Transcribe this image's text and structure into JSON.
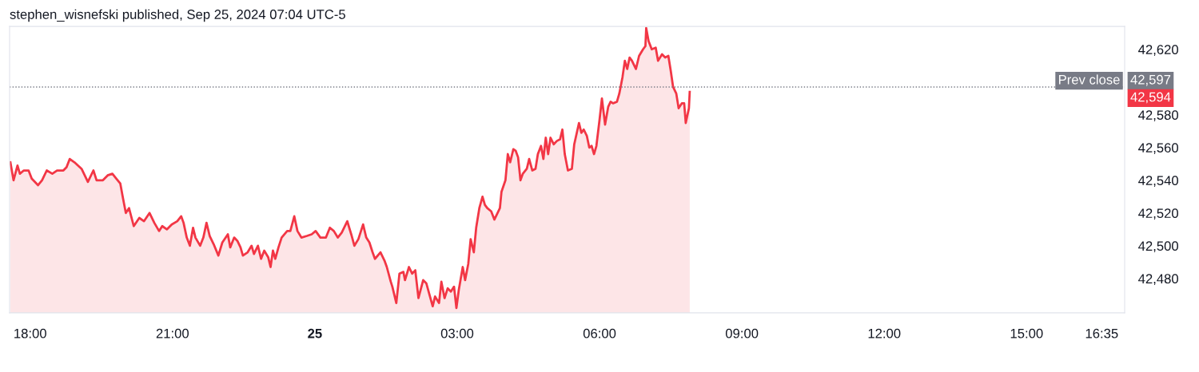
{
  "chart_data": {
    "type": "area",
    "title": "stephen_wisnefski published, Sep 25, 2024 07:04 UTC-5",
    "series": [
      {
        "color": "#f23645",
        "x": [
          "2024-09-24T17:35",
          "2024-09-24T17:39",
          "2024-09-24T17:44",
          "2024-09-24T17:47",
          "2024-09-24T17:52",
          "2024-09-24T17:58",
          "2024-09-24T18:02",
          "2024-09-24T18:10",
          "2024-09-24T18:15",
          "2024-09-24T18:21",
          "2024-09-24T18:28",
          "2024-09-24T18:34",
          "2024-09-24T18:42",
          "2024-09-24T18:46",
          "2024-09-24T18:50",
          "2024-09-24T18:56",
          "2024-09-24T19:05",
          "2024-09-24T19:13",
          "2024-09-24T19:20",
          "2024-09-24T19:24",
          "2024-09-24T19:32",
          "2024-09-24T19:38",
          "2024-09-24T19:44",
          "2024-09-24T19:49",
          "2024-09-24T19:54",
          "2024-09-24T19:57",
          "2024-09-24T20:01",
          "2024-09-24T20:05",
          "2024-09-24T20:11",
          "2024-09-24T20:18",
          "2024-09-24T20:24",
          "2024-09-24T20:31",
          "2024-09-24T20:37",
          "2024-09-24T20:43",
          "2024-09-24T20:47",
          "2024-09-24T20:53",
          "2024-09-24T20:59",
          "2024-09-24T21:06",
          "2024-09-24T21:11",
          "2024-09-24T21:14",
          "2024-09-24T21:18",
          "2024-09-24T21:22",
          "2024-09-24T21:26",
          "2024-09-24T21:29",
          "2024-09-24T21:35",
          "2024-09-24T21:39",
          "2024-09-24T21:43",
          "2024-09-24T21:47",
          "2024-09-24T21:52",
          "2024-09-24T21:58",
          "2024-09-24T22:03",
          "2024-09-24T22:10",
          "2024-09-24T22:13",
          "2024-09-24T22:18",
          "2024-09-24T22:22",
          "2024-09-24T22:26",
          "2024-09-24T22:29",
          "2024-09-24T22:35",
          "2024-09-24T22:40",
          "2024-09-24T22:43",
          "2024-09-24T22:48",
          "2024-09-24T22:52",
          "2024-09-24T22:56",
          "2024-09-24T23:01",
          "2024-09-24T23:04",
          "2024-09-24T23:07",
          "2024-09-24T23:10",
          "2024-09-24T23:14",
          "2024-09-24T23:18",
          "2024-09-24T23:25",
          "2024-09-24T23:29",
          "2024-09-24T23:34",
          "2024-09-24T23:38",
          "2024-09-24T23:43",
          "2024-09-24T23:50",
          "2024-09-24T23:56",
          "2024-09-25T00:01",
          "2024-09-25T00:07",
          "2024-09-25T00:14",
          "2024-09-25T00:19",
          "2024-09-25T00:24",
          "2024-09-25T00:29",
          "2024-09-25T00:34",
          "2024-09-25T00:41",
          "2024-09-25T00:46",
          "2024-09-25T00:50",
          "2024-09-25T00:55",
          "2024-09-25T01:01",
          "2024-09-25T01:05",
          "2024-09-25T01:09",
          "2024-09-25T01:13",
          "2024-09-25T01:16",
          "2024-09-25T01:23",
          "2024-09-25T01:28",
          "2024-09-25T01:31",
          "2024-09-25T01:36",
          "2024-09-25T01:38",
          "2024-09-25T01:43",
          "2024-09-25T01:47",
          "2024-09-25T01:52",
          "2024-09-25T01:54",
          "2024-09-25T01:59",
          "2024-09-25T02:03",
          "2024-09-25T02:07",
          "2024-09-25T02:11",
          "2024-09-25T02:17",
          "2024-09-25T02:21",
          "2024-09-25T02:25",
          "2024-09-25T02:29",
          "2024-09-25T02:32",
          "2024-09-25T02:37",
          "2024-09-25T02:40",
          "2024-09-25T02:44",
          "2024-09-25T02:48",
          "2024-09-25T02:52",
          "2024-09-25T02:56",
          "2024-09-25T02:59",
          "2024-09-25T03:02",
          "2024-09-25T03:07",
          "2024-09-25T03:10",
          "2024-09-25T03:14",
          "2024-09-25T03:17",
          "2024-09-25T03:21",
          "2024-09-25T03:24",
          "2024-09-25T03:28",
          "2024-09-25T03:32",
          "2024-09-25T03:35",
          "2024-09-25T03:38",
          "2024-09-25T03:43",
          "2024-09-25T03:47",
          "2024-09-25T03:51",
          "2024-09-25T03:54",
          "2024-09-25T03:56",
          "2024-09-25T04:01",
          "2024-09-25T04:04",
          "2024-09-25T04:07",
          "2024-09-25T04:11",
          "2024-09-25T04:14",
          "2024-09-25T04:17",
          "2024-09-25T04:20",
          "2024-09-25T04:23",
          "2024-09-25T04:28",
          "2024-09-25T04:31",
          "2024-09-25T04:35",
          "2024-09-25T04:39",
          "2024-09-25T04:42",
          "2024-09-25T04:46",
          "2024-09-25T04:49",
          "2024-09-25T04:52",
          "2024-09-25T04:55",
          "2024-09-25T04:58",
          "2024-09-25T05:02",
          "2024-09-25T05:06",
          "2024-09-25T05:10",
          "2024-09-25T05:13",
          "2024-09-25T05:16",
          "2024-09-25T05:20",
          "2024-09-25T05:25",
          "2024-09-25T05:28",
          "2024-09-25T05:34",
          "2024-09-25T05:37",
          "2024-09-25T05:40",
          "2024-09-25T05:44",
          "2024-09-25T05:47",
          "2024-09-25T05:50",
          "2024-09-25T05:53",
          "2024-09-25T05:56",
          "2024-09-25T06:00",
          "2024-09-25T06:03",
          "2024-09-25T06:07",
          "2024-09-25T06:11",
          "2024-09-25T06:14",
          "2024-09-25T06:17",
          "2024-09-25T06:22",
          "2024-09-25T06:25",
          "2024-09-25T06:29",
          "2024-09-25T06:32",
          "2024-09-25T06:35",
          "2024-09-25T06:38",
          "2024-09-25T06:41",
          "2024-09-25T06:46",
          "2024-09-25T06:50",
          "2024-09-25T06:55",
          "2024-09-25T06:58",
          "2024-09-25T06:59",
          "2024-09-25T07:02",
          "2024-09-25T07:06",
          "2024-09-25T07:11",
          "2024-09-25T07:14",
          "2024-09-25T07:19",
          "2024-09-25T07:23",
          "2024-09-25T07:27",
          "2024-09-25T07:30",
          "2024-09-25T07:33",
          "2024-09-25T07:37",
          "2024-09-25T07:40",
          "2024-09-25T07:44",
          "2024-09-25T07:47",
          "2024-09-25T07:49",
          "2024-09-25T07:53",
          "2024-09-25T07:54"
        ],
        "values": [
          42551,
          42540,
          42549,
          42544,
          42546,
          42546,
          42541,
          42537,
          42540,
          42546,
          42544,
          42546,
          42546,
          42548,
          42553,
          42551,
          42547,
          42539,
          42546,
          42540,
          42540,
          42543,
          42544,
          42541,
          42538,
          42530,
          42520,
          42523,
          42512,
          42517,
          42515,
          42520,
          42514,
          42509,
          42512,
          42510,
          42513,
          42515,
          42518,
          42514,
          42505,
          42500,
          42511,
          42505,
          42500,
          42505,
          42514,
          42506,
          42501,
          42494,
          42502,
          42507,
          42499,
          42505,
          42503,
          42499,
          42494,
          42496,
          42500,
          42495,
          42500,
          42492,
          42497,
          42493,
          42487,
          42497,
          42492,
          42499,
          42505,
          42509,
          42509,
          42518,
          42509,
          42505,
          42506,
          42507,
          42509,
          42505,
          42505,
          42511,
          42509,
          42505,
          42508,
          42515,
          42507,
          42500,
          42504,
          42513,
          42505,
          42502,
          42496,
          42492,
          42496,
          42491,
          42487,
          42478,
          42475,
          42465,
          42483,
          42484,
          42479,
          42487,
          42483,
          42485,
          42468,
          42479,
          42477,
          42470,
          42463,
          42469,
          42465,
          42478,
          42468,
          42474,
          42472,
          42475,
          42462,
          42473,
          42487,
          42479,
          42489,
          42504,
          42496,
          42511,
          42523,
          42530,
          42525,
          42523,
          42521,
          42516,
          42520,
          42523,
          42533,
          42540,
          42556,
          42551,
          42559,
          42558,
          42554,
          42540,
          42544,
          42547,
          42553,
          42546,
          42547,
          42556,
          42561,
          42553,
          42566,
          42556,
          42566,
          42562,
          42564,
          42565,
          42571,
          42556,
          42546,
          42547,
          42562,
          42575,
          42569,
          42571,
          42567,
          42560,
          42561,
          42556,
          42561,
          42577,
          42590,
          42574,
          42585,
          42588,
          42587,
          42588,
          42593,
          42603,
          42613,
          42608,
          42615,
          42613,
          42608,
          42616,
          42620,
          42622,
          42633,
          42625,
          42620,
          42621,
          42613,
          42617,
          42615,
          42616,
          42607,
          42597,
          42593,
          42584,
          42587,
          42587,
          42575,
          42584,
          42594
        ]
      }
    ],
    "xlim": [
      "2024-09-24T17:34",
      "2024-09-25T17:04"
    ],
    "xticks": [
      {
        "value": "2024-09-24T18:00",
        "label": "18:00"
      },
      {
        "value": "2024-09-24T21:00",
        "label": "21:00"
      },
      {
        "value": "2024-09-25T00:00",
        "label": "25"
      },
      {
        "value": "2024-09-25T03:00",
        "label": "03:00"
      },
      {
        "value": "2024-09-25T06:00",
        "label": "06:00"
      },
      {
        "value": "2024-09-25T09:00",
        "label": "09:00"
      },
      {
        "value": "2024-09-25T12:00",
        "label": "12:00"
      },
      {
        "value": "2024-09-25T15:00",
        "label": "15:00"
      },
      {
        "value": "2024-09-25T16:35",
        "label": "16:35"
      }
    ],
    "ylim": [
      42459,
      42634
    ],
    "yticks": [
      {
        "value": 42480,
        "label": "42,480"
      },
      {
        "value": 42500,
        "label": "42,500"
      },
      {
        "value": 42520,
        "label": "42,520"
      },
      {
        "value": 42540,
        "label": "42,540"
      },
      {
        "value": 42560,
        "label": "42,560"
      },
      {
        "value": 42580,
        "label": "42,580"
      },
      {
        "value": 42620,
        "label": "42,620"
      }
    ],
    "ref_lines": [
      {
        "axis": "y",
        "value": 42597,
        "label": "Prev close",
        "color": "#787b86",
        "line_style": "dotted"
      }
    ],
    "annotations": [
      "42,597",
      "42,594"
    ],
    "grid": false,
    "marker": "none",
    "line_style": "solid"
  }
}
